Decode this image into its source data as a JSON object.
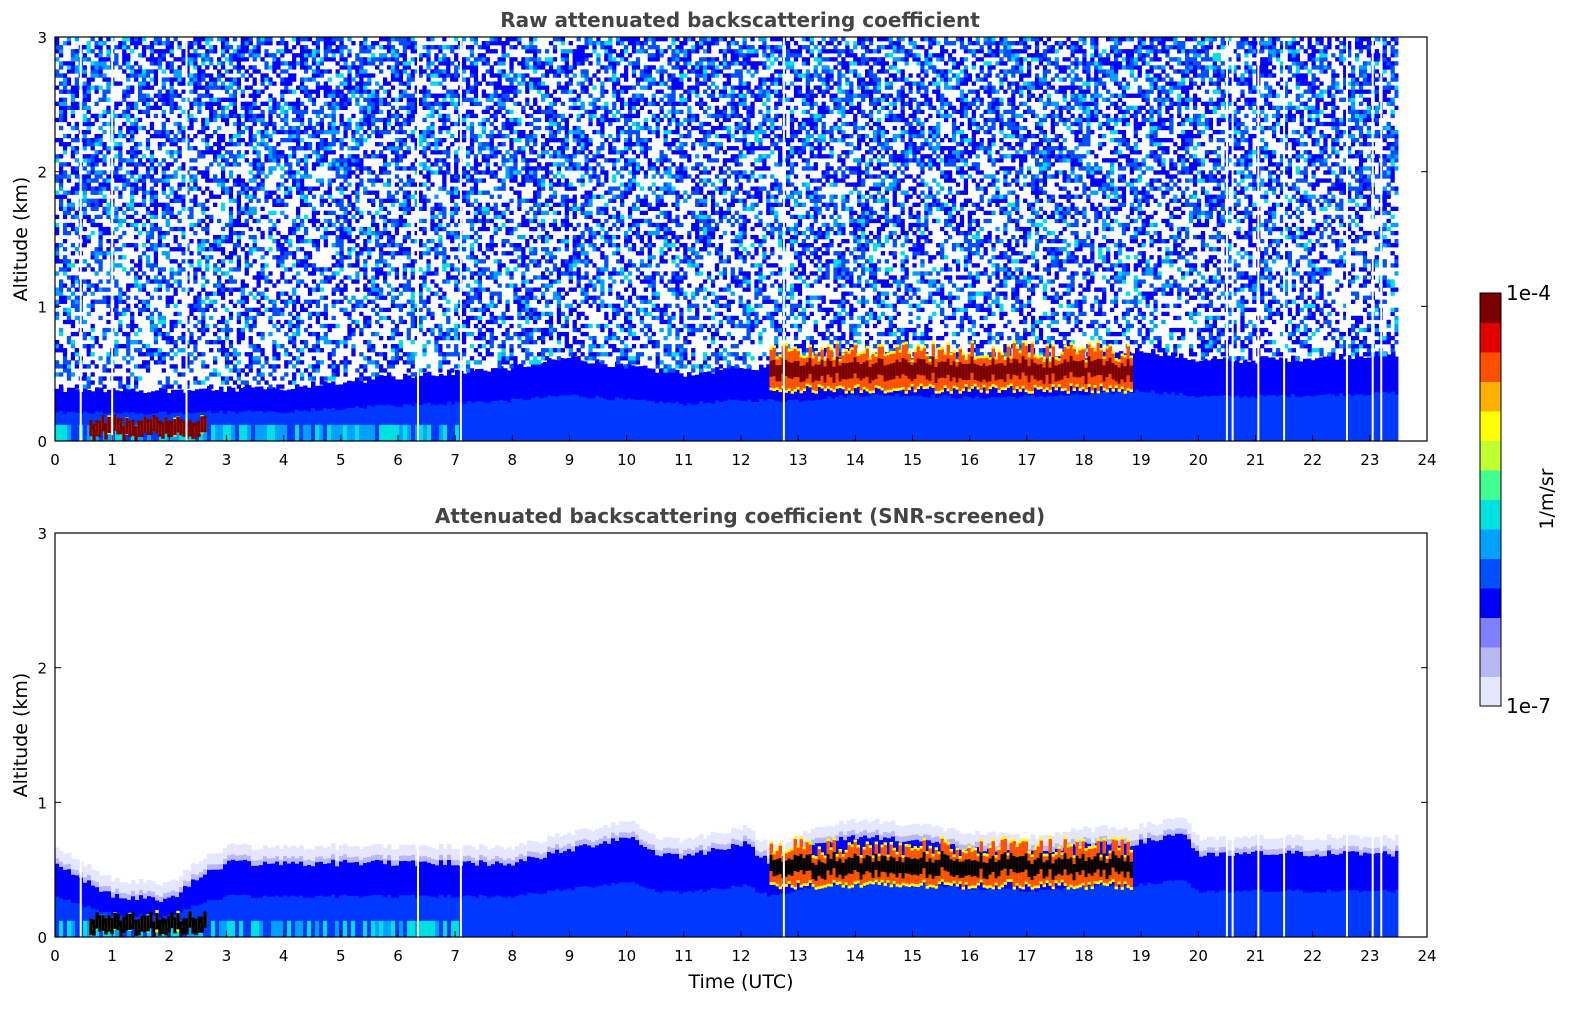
{
  "chart_data": [
    {
      "type": "heatmap",
      "title": "Raw attenuated backscattering coefficient",
      "xlabel": "",
      "ylabel": "Altitude (km)",
      "xlim": [
        0,
        24
      ],
      "ylim": [
        0,
        3
      ],
      "xticks": [
        "0",
        "1",
        "2",
        "3",
        "4",
        "5",
        "6",
        "7",
        "8",
        "9",
        "10",
        "11",
        "12",
        "13",
        "14",
        "15",
        "16",
        "17",
        "18",
        "19",
        "20",
        "21",
        "22",
        "23",
        "24"
      ],
      "yticks": [
        "0",
        "1",
        "2",
        "3"
      ],
      "data_end_hour": 23.5,
      "boundary_layer_top_km": [
        [
          0,
          0.38
        ],
        [
          2,
          0.38
        ],
        [
          4,
          0.4
        ],
        [
          6,
          0.48
        ],
        [
          8,
          0.55
        ],
        [
          9,
          0.62
        ],
        [
          10,
          0.55
        ],
        [
          11,
          0.5
        ],
        [
          12,
          0.55
        ],
        [
          13,
          0.55
        ],
        [
          14,
          0.62
        ],
        [
          15,
          0.62
        ],
        [
          16,
          0.58
        ],
        [
          17,
          0.6
        ],
        [
          18,
          0.62
        ],
        [
          19,
          0.68
        ],
        [
          20,
          0.6
        ],
        [
          21,
          0.6
        ],
        [
          22,
          0.62
        ],
        [
          23.5,
          0.65
        ]
      ],
      "cloud_layers": [
        {
          "start": 0.6,
          "end": 2.6,
          "base_km": 0.06,
          "top_km": 0.2
        },
        {
          "start": 12.5,
          "end": 18.8,
          "base_km": 0.38,
          "top_km": 0.75
        }
      ],
      "gaps_hours": [
        0.45,
        1.0,
        2.3,
        6.35,
        7.1,
        12.75,
        20.5,
        20.6,
        21.05,
        21.5,
        22.6,
        23.05,
        23.2
      ]
    },
    {
      "type": "heatmap",
      "title": "Attenuated backscattering coefficient (SNR-screened)",
      "xlabel": "Time (UTC)",
      "ylabel": "Altitude (km)",
      "xlim": [
        0,
        24
      ],
      "ylim": [
        0,
        3
      ],
      "xticks": [
        "0",
        "1",
        "2",
        "3",
        "4",
        "5",
        "6",
        "7",
        "8",
        "9",
        "10",
        "11",
        "12",
        "13",
        "14",
        "15",
        "16",
        "17",
        "18",
        "19",
        "20",
        "21",
        "22",
        "23",
        "24"
      ],
      "yticks": [
        "0",
        "1",
        "2",
        "3"
      ],
      "data_end_hour": 23.5,
      "boundary_layer_top_km": [
        [
          0,
          0.55
        ],
        [
          1,
          0.3
        ],
        [
          2,
          0.28
        ],
        [
          2.5,
          0.45
        ],
        [
          3,
          0.55
        ],
        [
          4,
          0.55
        ],
        [
          6,
          0.55
        ],
        [
          8,
          0.55
        ],
        [
          9,
          0.65
        ],
        [
          10,
          0.75
        ],
        [
          10.5,
          0.62
        ],
        [
          11,
          0.6
        ],
        [
          12,
          0.7
        ],
        [
          12.5,
          0.55
        ],
        [
          13,
          0.65
        ],
        [
          14,
          0.75
        ],
        [
          15,
          0.72
        ],
        [
          16,
          0.65
        ],
        [
          17,
          0.62
        ],
        [
          18,
          0.68
        ],
        [
          19,
          0.7
        ],
        [
          19.7,
          0.78
        ],
        [
          20,
          0.6
        ],
        [
          21,
          0.62
        ],
        [
          22,
          0.62
        ],
        [
          23.5,
          0.62
        ]
      ],
      "cloud_layers": [
        {
          "start": 0.6,
          "end": 2.6,
          "base_km": 0.06,
          "top_km": 0.2
        },
        {
          "start": 12.5,
          "end": 18.8,
          "base_km": 0.38,
          "top_km": 0.75
        }
      ],
      "gaps_hours": [
        0.45,
        6.35,
        7.1,
        12.75,
        20.5,
        20.6,
        21.05,
        21.5,
        22.6,
        23.05,
        23.2
      ]
    }
  ],
  "colorbar": {
    "max_label": "1e-4",
    "min_label": "1e-7",
    "unit_label": "1/m/sr",
    "colors": [
      "#e6e6ff",
      "#b8b8f5",
      "#8080ff",
      "#0000ff",
      "#0050ff",
      "#00a0ff",
      "#00e0e0",
      "#40ff90",
      "#c0ff30",
      "#ffff00",
      "#ffb000",
      "#ff5000",
      "#e00000",
      "#7a0000"
    ]
  }
}
